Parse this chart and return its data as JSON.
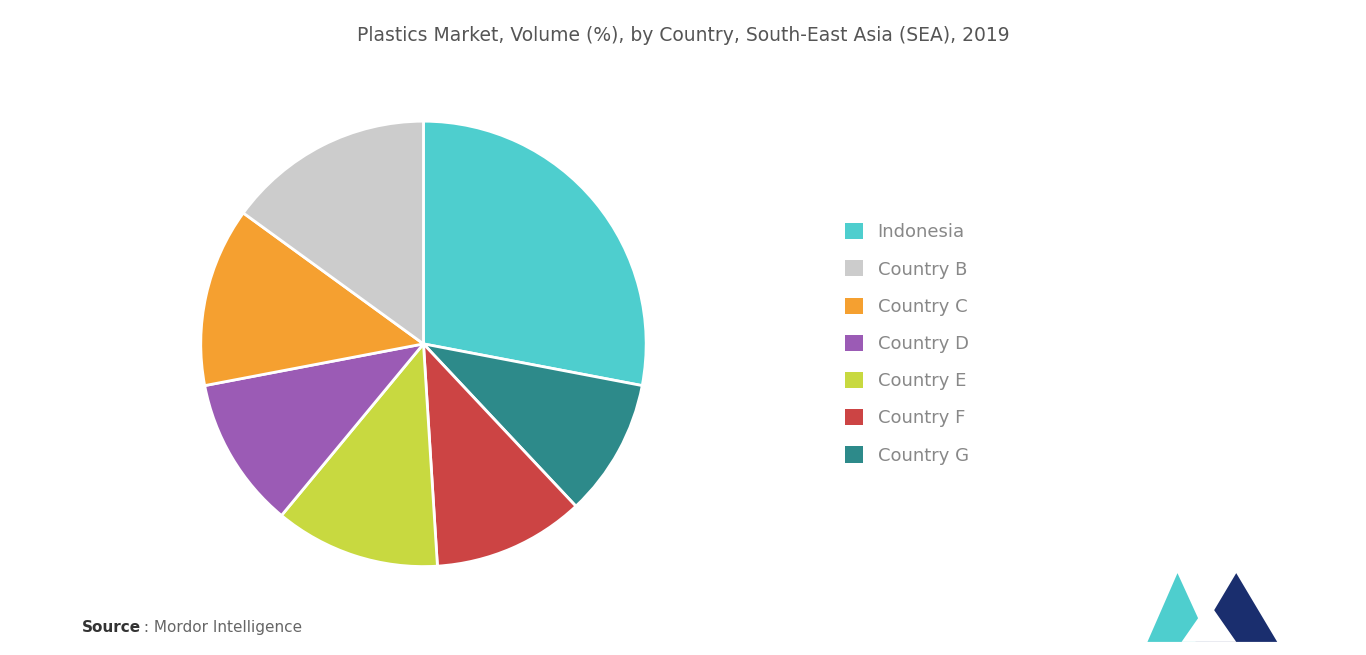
{
  "title": "Plastics Market, Volume (%), by Country, South-East Asia (SEA), 2019",
  "labels": [
    "Indonesia",
    "Country B",
    "Country C",
    "Country D",
    "Country E",
    "Country F",
    "Country G"
  ],
  "values": [
    28,
    15,
    13,
    11,
    12,
    11,
    10
  ],
  "colors": [
    "#4ECECE",
    "#CCCCCC",
    "#F5A030",
    "#9B5BB5",
    "#C8D940",
    "#CC4444",
    "#2D8A8A"
  ],
  "legend_labels": [
    "Indonesia",
    "Country B",
    "Country C",
    "Country D",
    "Country E",
    "Country F",
    "Country G"
  ],
  "source_bold": "Source",
  "source_rest": " : Mordor Intelligence",
  "background_color": "#FFFFFF",
  "title_color": "#555555",
  "legend_text_color": "#888888",
  "title_fontsize": 13.5,
  "legend_fontsize": 13
}
